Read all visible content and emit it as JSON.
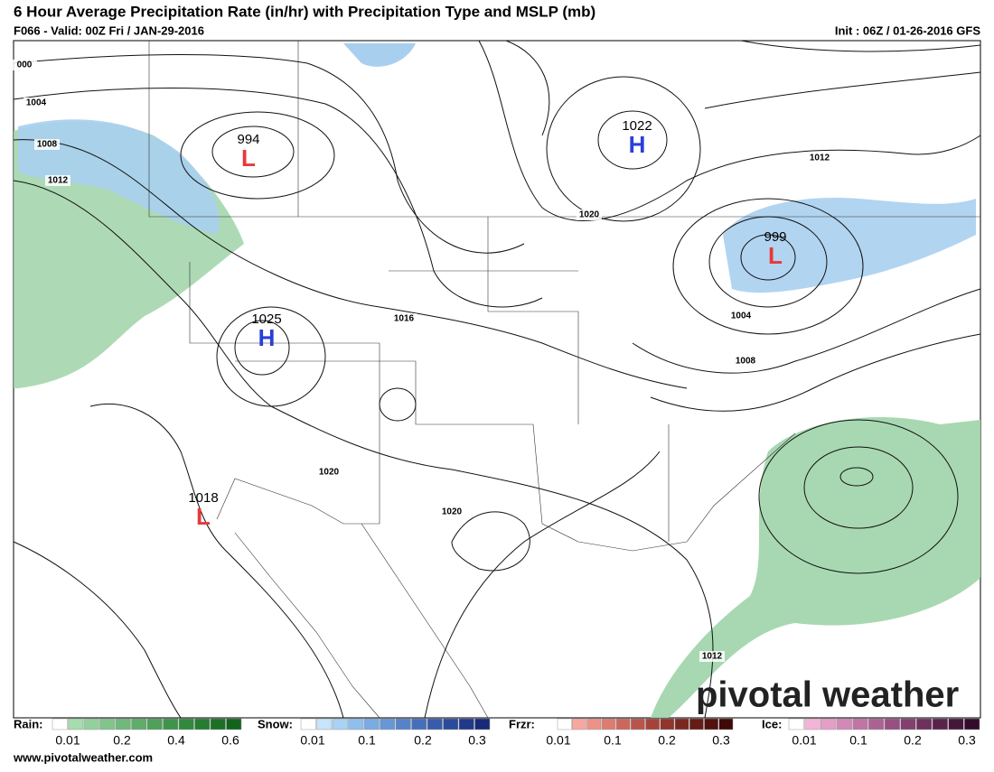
{
  "header": {
    "title": "6 Hour Average Precipitation Rate (in/hr) with Precipitation Type and MSLP (mb)",
    "subtitle": "F066 - Valid: 00Z Fri / JAN-29-2016",
    "init": "Init : 06Z / 01-26-2016 GFS"
  },
  "map": {
    "centers": [
      {
        "type": "L",
        "value": "994"
      },
      {
        "type": "H",
        "value": "1022"
      },
      {
        "type": "L",
        "value": "999"
      },
      {
        "type": "H",
        "value": "1025"
      },
      {
        "type": "L",
        "value": "1018"
      }
    ],
    "contour_labels": [
      "000",
      "1004",
      "1008",
      "1012",
      "1016",
      "1020",
      "1020",
      "1020",
      "1012",
      "1004",
      "1008",
      "1012"
    ]
  },
  "legend": [
    {
      "name": "Rain:",
      "ticks": [
        "0.01",
        "0.2",
        "0.4",
        "0.6"
      ],
      "colors": [
        "#ffffff",
        "#a6dcae",
        "#94d09d",
        "#82c48c",
        "#70b87b",
        "#5fac6b",
        "#4ea05b",
        "#3f944c",
        "#32883e",
        "#267c31",
        "#1b7026",
        "#12641c"
      ]
    },
    {
      "name": "Snow:",
      "ticks": [
        "0.01",
        "0.1",
        "0.2",
        "0.3"
      ],
      "colors": [
        "#ffffff",
        "#c6e4fa",
        "#a9d2f4",
        "#8fbfec",
        "#7aabe2",
        "#6797d6",
        "#5683c9",
        "#466fbb",
        "#385cab",
        "#2b4a9b",
        "#20398a",
        "#162a78"
      ]
    },
    {
      "name": "Frzr:",
      "ticks": [
        "0.01",
        "0.1",
        "0.2",
        "0.3"
      ],
      "colors": [
        "#ffffff",
        "#f6a8a0",
        "#ec9288",
        "#dd7c72",
        "#cc675e",
        "#b9544b",
        "#a5433b",
        "#90342d",
        "#7b2721",
        "#661b16",
        "#52110d",
        "#3e0906"
      ]
    },
    {
      "name": "Ice:",
      "ticks": [
        "0.01",
        "0.1",
        "0.2",
        "0.3"
      ],
      "colors": [
        "#ffffff",
        "#f3b4d8",
        "#e49ec8",
        "#d389b7",
        "#c075a5",
        "#ac6293",
        "#975081",
        "#82406f",
        "#6d315d",
        "#58234b",
        "#44173a",
        "#320c2a"
      ]
    }
  ],
  "footer": {
    "url": "www.pivotalweather.com",
    "watermark": "pivotal weather"
  }
}
